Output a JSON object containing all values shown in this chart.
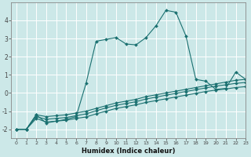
{
  "xlabel": "Humidex (Indice chaleur)",
  "xlim": [
    -0.5,
    23
  ],
  "ylim": [
    -2.5,
    5.0
  ],
  "yticks": [
    -2,
    -1,
    0,
    1,
    2,
    3,
    4
  ],
  "xticks": [
    0,
    1,
    2,
    3,
    4,
    5,
    6,
    7,
    8,
    9,
    10,
    11,
    12,
    13,
    14,
    15,
    16,
    17,
    18,
    19,
    20,
    21,
    22,
    23
  ],
  "background_color": "#cce8e8",
  "line_color": "#1a7070",
  "grid_color": "#b0d8d8",
  "series": [
    {
      "x": [
        0,
        1,
        2,
        3,
        4,
        5,
        6,
        7,
        8,
        9,
        10,
        11,
        12,
        13,
        14,
        15,
        16,
        17,
        18,
        19,
        20,
        21,
        22,
        23
      ],
      "y": [
        -2.0,
        -2.0,
        -1.2,
        -1.65,
        -1.55,
        -1.45,
        -1.3,
        0.55,
        2.85,
        2.95,
        3.05,
        2.7,
        2.65,
        3.05,
        3.7,
        4.55,
        4.45,
        3.15,
        0.75,
        0.65,
        0.2,
        0.25,
        1.15,
        0.75
      ]
    },
    {
      "x": [
        0,
        1,
        2,
        3,
        4,
        5,
        6,
        7,
        8,
        9,
        10,
        11,
        12,
        13,
        14,
        15,
        16,
        17,
        18,
        19,
        20,
        21,
        22,
        23
      ],
      "y": [
        -2.0,
        -2.0,
        -1.2,
        -1.3,
        -1.25,
        -1.2,
        -1.1,
        -1.0,
        -0.85,
        -0.7,
        -0.55,
        -0.45,
        -0.35,
        -0.2,
        -0.1,
        -0.0,
        0.1,
        0.2,
        0.3,
        0.4,
        0.5,
        0.6,
        0.7,
        0.75
      ]
    },
    {
      "x": [
        0,
        1,
        2,
        3,
        4,
        5,
        6,
        7,
        8,
        9,
        10,
        11,
        12,
        13,
        14,
        15,
        16,
        17,
        18,
        19,
        20,
        21,
        22,
        23
      ],
      "y": [
        -2.0,
        -2.0,
        -1.3,
        -1.45,
        -1.4,
        -1.35,
        -1.25,
        -1.15,
        -0.98,
        -0.82,
        -0.68,
        -0.58,
        -0.48,
        -0.33,
        -0.23,
        -0.12,
        -0.02,
        0.08,
        0.18,
        0.28,
        0.38,
        0.45,
        0.53,
        0.58
      ]
    },
    {
      "x": [
        0,
        1,
        2,
        3,
        4,
        5,
        6,
        7,
        8,
        9,
        10,
        11,
        12,
        13,
        14,
        15,
        16,
        17,
        18,
        19,
        20,
        21,
        22,
        23
      ],
      "y": [
        -2.0,
        -2.0,
        -1.4,
        -1.6,
        -1.55,
        -1.5,
        -1.4,
        -1.32,
        -1.15,
        -1.0,
        -0.85,
        -0.75,
        -0.65,
        -0.52,
        -0.42,
        -0.32,
        -0.22,
        -0.12,
        -0.02,
        0.08,
        0.16,
        0.22,
        0.3,
        0.35
      ]
    }
  ]
}
